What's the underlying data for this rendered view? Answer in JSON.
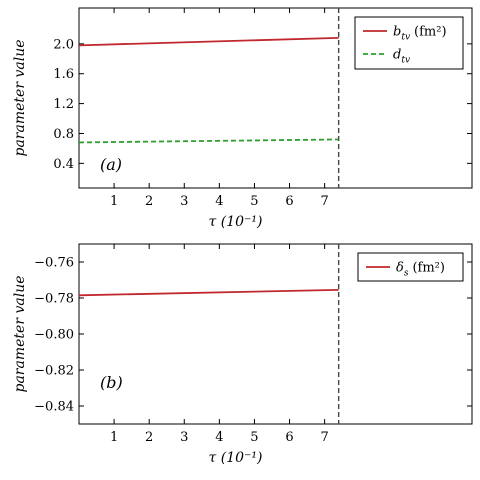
{
  "colors": {
    "series_red": "#c0282e",
    "series_green": "#2ca02c",
    "vline": "#444444",
    "axes": "#000000"
  },
  "chart_data": [
    {
      "type": "line",
      "panel_label": "(a)",
      "xlabel": "τ (10⁻¹)",
      "ylabel": "parameter value",
      "xlim": [
        0,
        11.2
      ],
      "ylim": [
        0.07,
        2.48
      ],
      "xticks": [
        1,
        2,
        3,
        4,
        5,
        6,
        7
      ],
      "yticks": [
        0.4,
        0.8,
        1.2,
        1.6,
        2.0
      ],
      "xtick_labels": [
        "1",
        "2",
        "3",
        "4",
        "5",
        "6",
        "7"
      ],
      "ytick_labels": [
        "0.4",
        "0.8",
        "1.2",
        "1.6",
        "2.0"
      ],
      "vline_x": 7.4,
      "vline_style": "dashed",
      "legend_loc": "top-right",
      "series": [
        {
          "name": "btv (fm²)",
          "legend_main": "b",
          "legend_sub": "tv",
          "legend_unit": "(fm²)",
          "style": "solid",
          "color_key": "series_red",
          "x": [
            0,
            7.4
          ],
          "values": [
            1.98,
            2.08
          ]
        },
        {
          "name": "dtv",
          "legend_main": "d",
          "legend_sub": "tv",
          "legend_unit": "",
          "style": "dashed",
          "color_key": "series_green",
          "x": [
            0,
            7.4
          ],
          "values": [
            0.68,
            0.72
          ]
        }
      ]
    },
    {
      "type": "line",
      "panel_label": "(b)",
      "xlabel": "τ (10⁻¹)",
      "ylabel": "parameter value",
      "xlim": [
        0,
        11.2
      ],
      "ylim": [
        -0.85,
        -0.75
      ],
      "xticks": [
        1,
        2,
        3,
        4,
        5,
        6,
        7
      ],
      "yticks": [
        -0.76,
        -0.78,
        -0.8,
        -0.82,
        -0.84
      ],
      "xtick_labels": [
        "1",
        "2",
        "3",
        "4",
        "5",
        "6",
        "7"
      ],
      "ytick_labels": [
        "−0.76",
        "−0.78",
        "−0.80",
        "−0.82",
        "−0.84"
      ],
      "vline_x": 7.4,
      "vline_style": "dashed",
      "legend_loc": "top-right",
      "series": [
        {
          "name": "δs (fm²)",
          "legend_main": "δ",
          "legend_sub": "s",
          "legend_unit": "(fm²)",
          "style": "solid",
          "color_key": "series_red",
          "x": [
            0,
            7.4
          ],
          "values": [
            -0.7785,
            -0.7755
          ]
        }
      ]
    }
  ]
}
